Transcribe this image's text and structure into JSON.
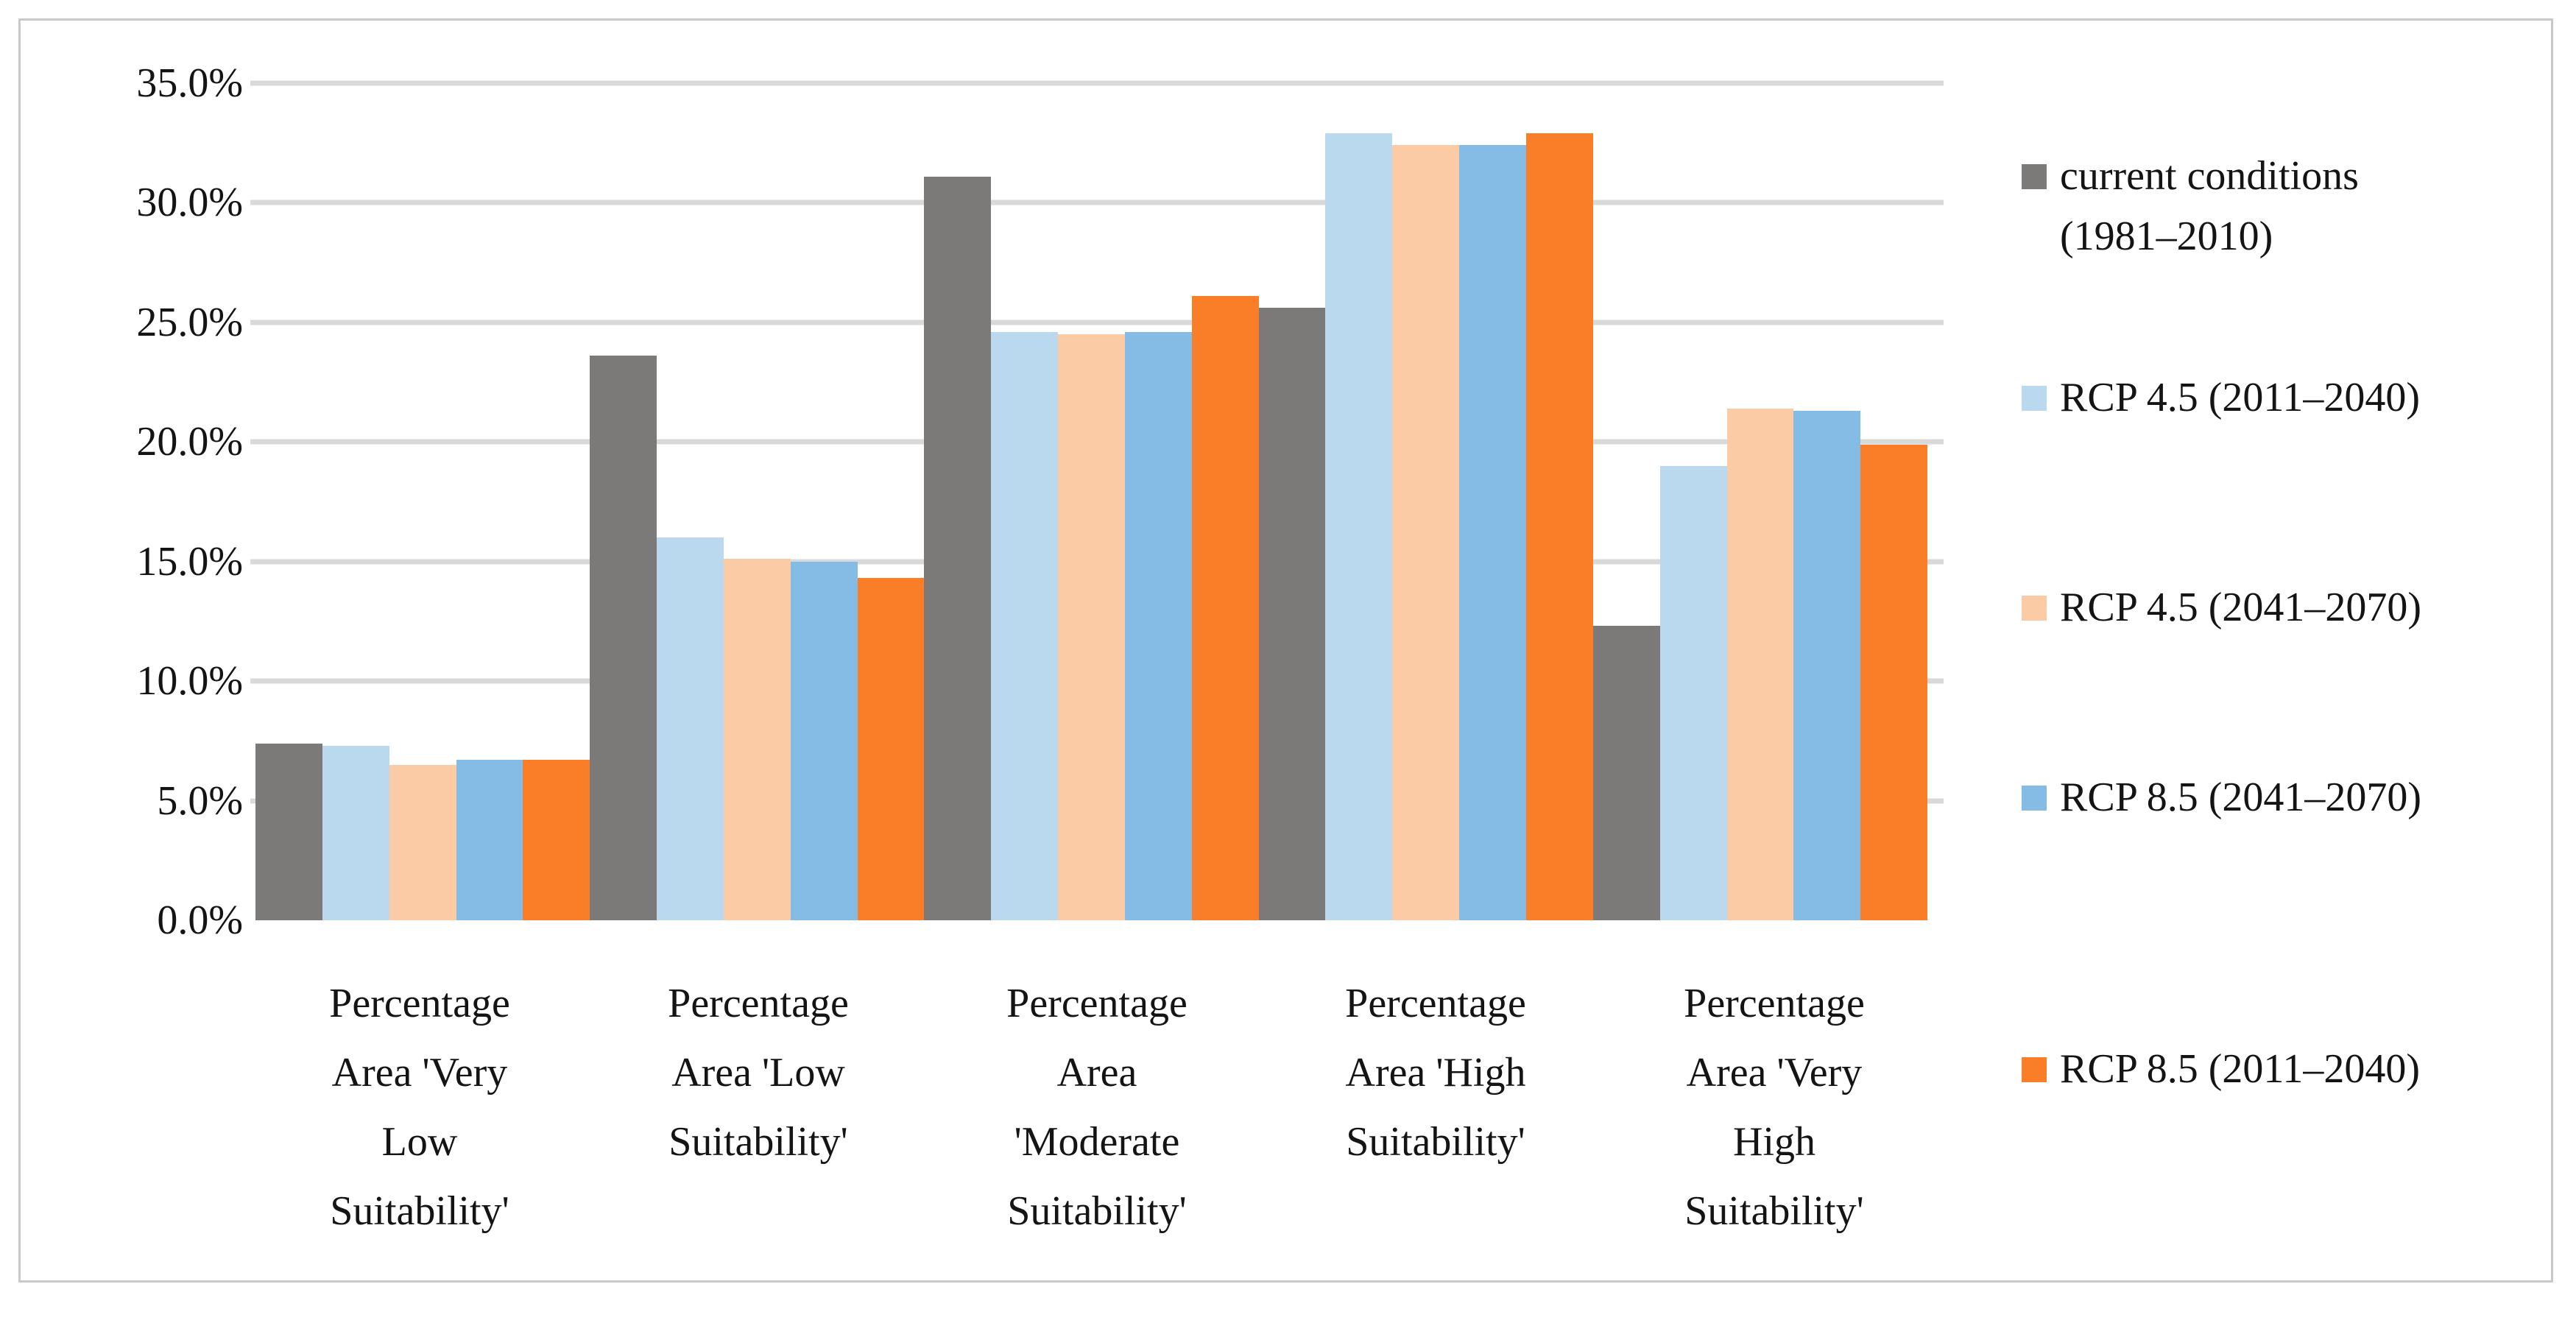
{
  "chart_data": {
    "type": "bar",
    "categories": [
      "Percentage Area 'Very Low Suitability'",
      "Percentage Area 'Low Suitability'",
      "Percentage Area 'Moderate Suitability'",
      "Percentage Area 'High Suitability'",
      "Percentage Area 'Very High Suitability'"
    ],
    "series": [
      {
        "name": "current conditions (1981–2010)",
        "color": "#7c7979",
        "values": [
          7.4,
          23.6,
          31.1,
          25.6,
          12.3
        ]
      },
      {
        "name": "RCP 4.5 (2011–2040)",
        "color": "#bad8ee",
        "values": [
          7.3,
          16.0,
          24.6,
          32.9,
          19.0
        ]
      },
      {
        "name": "RCP 4.5 (2041–2070)",
        "color": "#facba4",
        "values": [
          6.5,
          15.1,
          24.5,
          32.4,
          21.4
        ]
      },
      {
        "name": "RCP 8.5 (2041–2070)",
        "color": "#85bce6",
        "values": [
          6.7,
          15.0,
          24.6,
          32.4,
          21.3
        ]
      },
      {
        "name": "RCP 8.5 (2011–2040)",
        "color": "#fa7d27",
        "values": [
          6.7,
          14.3,
          26.1,
          32.9,
          19.9
        ]
      }
    ],
    "ylim": [
      0,
      35
    ],
    "y_tick_step": 5,
    "grid": true,
    "grid_color": "#d9d9d9",
    "legend_position": "right"
  },
  "y_axis": {
    "ticks": [
      "35.0%",
      "30.0%",
      "25.0%",
      "20.0%",
      "15.0%",
      "10.0%",
      "5.0%",
      "0.0%"
    ]
  },
  "x_axis": {
    "categories": [
      {
        "lines": [
          "Percentage",
          "Area 'Very",
          "Low",
          "Suitability'"
        ]
      },
      {
        "lines": [
          "Percentage",
          "Area 'Low",
          "Suitability'"
        ]
      },
      {
        "lines": [
          "Percentage",
          "Area",
          "'Moderate",
          "Suitability'"
        ]
      },
      {
        "lines": [
          "Percentage",
          "Area 'High",
          "Suitability'"
        ]
      },
      {
        "lines": [
          "Percentage",
          "Area 'Very",
          "High",
          "Suitability'"
        ]
      }
    ]
  },
  "legend": {
    "items": [
      {
        "lines": [
          "current conditions",
          "(1981–2010)"
        ]
      },
      {
        "lines": [
          "RCP 4.5 (2011–2040)"
        ]
      },
      {
        "lines": [
          "RCP 4.5 (2041–2070)"
        ]
      },
      {
        "lines": [
          "RCP 8.5 (2041–2070)"
        ]
      },
      {
        "lines": [
          "RCP 8.5 (2011–2040)"
        ]
      }
    ]
  }
}
